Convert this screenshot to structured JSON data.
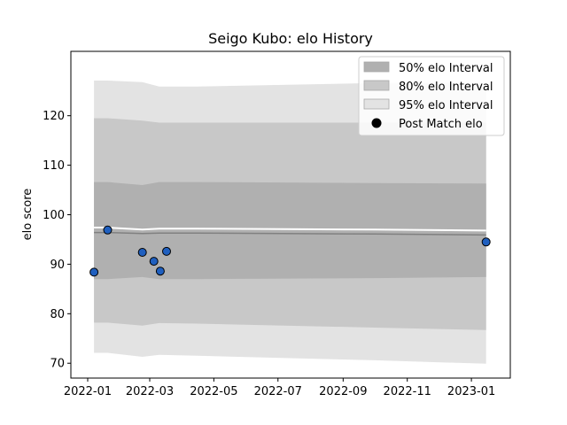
{
  "chart_data": {
    "type": "line",
    "title": "Seigo Kubo: elo History",
    "xlabel": "",
    "ylabel": "elo score",
    "ylim": [
      67,
      133
    ],
    "xlim": [
      "2021-12-16",
      "2023-02-07"
    ],
    "x_ticks": [
      "2022-01-01",
      "2022-03-01",
      "2022-05-01",
      "2022-07-01",
      "2022-09-01",
      "2022-11-01",
      "2023-01-01"
    ],
    "x_tick_labels": [
      "2022-01",
      "2022-03",
      "2022-05",
      "2022-07",
      "2022-09",
      "2022-11",
      "2023-01"
    ],
    "y_ticks": [
      70,
      80,
      90,
      100,
      110,
      120
    ],
    "y_tick_labels": [
      "70",
      "80",
      "90",
      "100",
      "110",
      "120"
    ],
    "legend": {
      "position": "top-right",
      "entries": [
        "50% elo Interval",
        "80% elo Interval",
        "95% elo Interval",
        "Post Match elo"
      ]
    },
    "band_dates": [
      "2022-01-07",
      "2022-01-20",
      "2022-02-22",
      "2022-03-10",
      "2022-04-15",
      "2022-10-01",
      "2023-01-15"
    ],
    "band_95": {
      "upper": [
        127.1,
        127.1,
        126.8,
        125.9,
        125.9,
        126.6,
        126.6
      ],
      "lower": [
        72.1,
        72.1,
        71.3,
        71.7,
        71.5,
        70.6,
        69.9
      ]
    },
    "band_80": {
      "upper": [
        119.5,
        119.5,
        119.0,
        118.6,
        118.6,
        118.6,
        118.6
      ],
      "lower": [
        78.2,
        78.2,
        77.6,
        78.1,
        78.0,
        77.2,
        76.7
      ]
    },
    "band_50": {
      "upper": [
        106.6,
        106.6,
        106.0,
        106.6,
        106.6,
        106.4,
        106.3
      ],
      "lower": [
        87.0,
        87.0,
        87.4,
        87.0,
        87.0,
        87.2,
        87.4
      ]
    },
    "mean_line": [
      96.4,
      96.4,
      96.2,
      96.3,
      96.3,
      96.1,
      95.9
    ],
    "white_line": [
      97.4,
      97.4,
      97.0,
      97.2,
      97.2,
      97.0,
      96.8
    ],
    "post_match": {
      "x": [
        "2022-01-07",
        "2022-01-20",
        "2022-02-22",
        "2022-03-05",
        "2022-03-11",
        "2022-03-17",
        "2023-01-15"
      ],
      "y": [
        88.4,
        96.9,
        92.4,
        90.6,
        88.6,
        92.6,
        94.5
      ]
    },
    "colors": {
      "band_50": "#b0b0b0",
      "band_80": "#c8c8c8",
      "band_95": "#e3e3e3",
      "mean_line": "#808080",
      "white_line": "#ffffff",
      "points": "#1f5fbf",
      "points_edge": "#000000"
    }
  }
}
